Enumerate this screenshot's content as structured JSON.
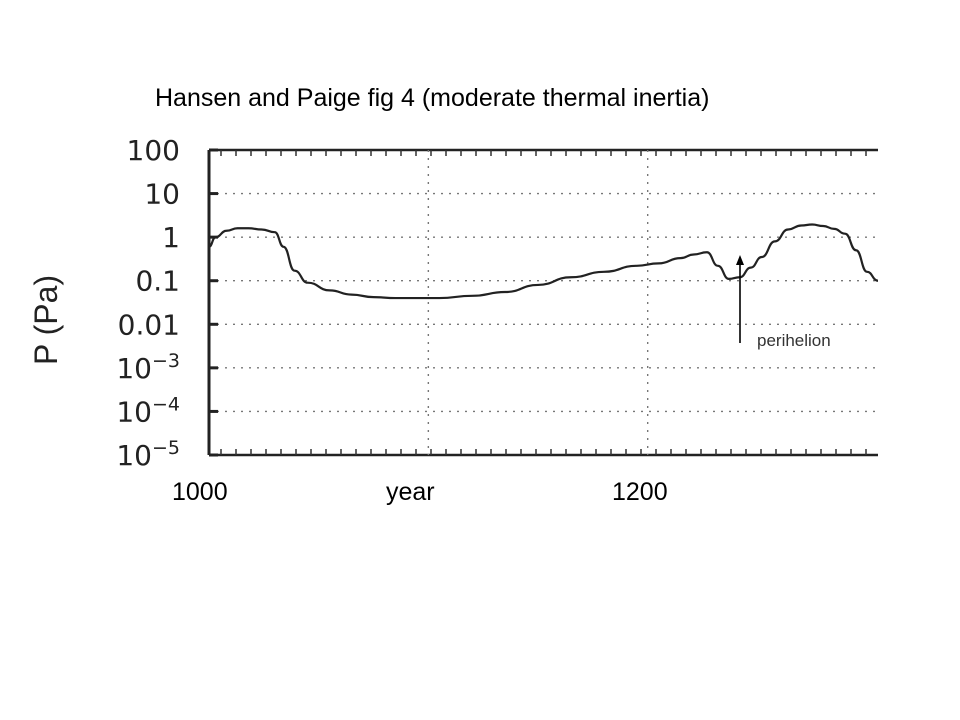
{
  "slide": {
    "title": "Hansen and Paige fig 4 (moderate thermal inertia)",
    "xlabel": "year",
    "x_ticks": [
      "1000",
      "1200"
    ],
    "ylabel": "P (Pa)",
    "y_ticks": [
      "100",
      "10",
      "1",
      "0.1",
      "0.01",
      "10^-3",
      "10^-4",
      "10^-5"
    ],
    "annotation": "perihelion"
  },
  "chart_data": {
    "type": "line",
    "title": "Hansen and Paige fig 4 (moderate thermal inertia)",
    "xlabel": "year",
    "ylabel": "P (Pa)",
    "yscale": "log",
    "ylim": [
      1e-05,
      100
    ],
    "xlim": [
      1000,
      1305
    ],
    "grid": true,
    "x": [
      1000,
      1003,
      1008,
      1013,
      1018,
      1024,
      1030,
      1034,
      1039,
      1045,
      1055,
      1065,
      1075,
      1085,
      1095,
      1105,
      1120,
      1135,
      1150,
      1165,
      1180,
      1195,
      1205,
      1215,
      1221,
      1227,
      1232,
      1237,
      1242,
      1247,
      1252,
      1258,
      1264,
      1270,
      1275,
      1280,
      1285,
      1290,
      1295,
      1300,
      1305
    ],
    "y": [
      0.6,
      1.0,
      1.4,
      1.6,
      1.6,
      1.5,
      1.3,
      0.6,
      0.17,
      0.09,
      0.06,
      0.048,
      0.042,
      0.04,
      0.04,
      0.04,
      0.045,
      0.055,
      0.08,
      0.12,
      0.16,
      0.22,
      0.25,
      0.33,
      0.4,
      0.45,
      0.22,
      0.11,
      0.12,
      0.2,
      0.35,
      0.8,
      1.5,
      1.85,
      1.95,
      1.8,
      1.55,
      1.2,
      0.5,
      0.16,
      0.1
    ],
    "annotations": [
      {
        "text": "perihelion",
        "x": 1247,
        "y": 0.3
      }
    ]
  }
}
